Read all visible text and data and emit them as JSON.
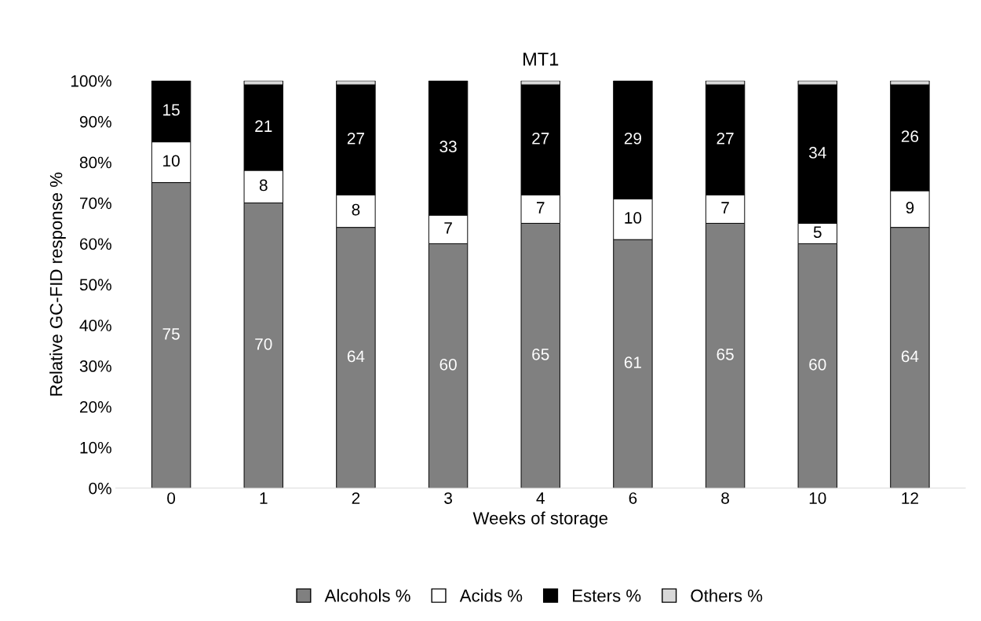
{
  "chart_data": {
    "type": "bar",
    "stacked": true,
    "title": "MT1",
    "xlabel": "Weeks of storage",
    "ylabel": "Relative GC-FID response %",
    "categories": [
      "0",
      "1",
      "2",
      "3",
      "4",
      "6",
      "8",
      "10",
      "12"
    ],
    "series": [
      {
        "name": "Alcohols %",
        "color": "#808080",
        "values": [
          75,
          70,
          64,
          60,
          65,
          61,
          65,
          60,
          64
        ],
        "value_labels": [
          "75",
          "70",
          "64",
          "60",
          "65",
          "61",
          "65",
          "60",
          "64"
        ]
      },
      {
        "name": "Acids %",
        "color": "#ffffff",
        "values": [
          10,
          8,
          8,
          7,
          7,
          10,
          7,
          5,
          9
        ],
        "value_labels": [
          "10",
          "8",
          "8",
          "7",
          "7",
          "10",
          "7",
          "5",
          "9"
        ]
      },
      {
        "name": "Esters %",
        "color": "#000000",
        "values": [
          15,
          21,
          27,
          33,
          27,
          29,
          27,
          34,
          26
        ],
        "value_labels": [
          "15",
          "21",
          "27",
          "33",
          "27",
          "29",
          "27",
          "34",
          "26"
        ]
      },
      {
        "name": "Others %",
        "color": "#d9d9d9",
        "values": [
          0,
          1,
          1,
          0,
          1,
          0,
          1,
          1,
          1
        ]
      }
    ],
    "ylim": [
      0,
      100
    ],
    "yticks": [
      {
        "value": 0,
        "label": "0%"
      },
      {
        "value": 10,
        "label": "10%"
      },
      {
        "value": 20,
        "label": "20%"
      },
      {
        "value": 30,
        "label": "30%"
      },
      {
        "value": 40,
        "label": "40%"
      },
      {
        "value": 50,
        "label": "50%"
      },
      {
        "value": 60,
        "label": "60%"
      },
      {
        "value": 70,
        "label": "70%"
      },
      {
        "value": 80,
        "label": "80%"
      },
      {
        "value": 90,
        "label": "90%"
      },
      {
        "value": 100,
        "label": "100%"
      }
    ],
    "grid": false,
    "legend": "bottom"
  }
}
